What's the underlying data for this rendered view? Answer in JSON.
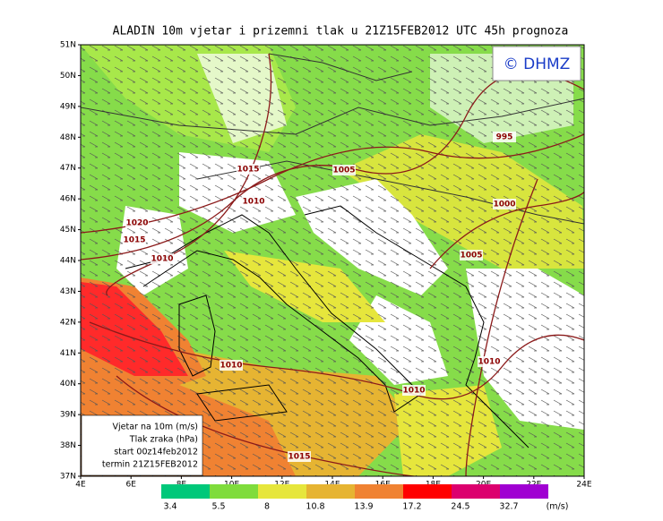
{
  "header": {
    "title": "ALADIN 10m vjetar i prizemni tlak u 21Z15FEB2012 UTC 45h prognoza"
  },
  "logo": "© DHMZ",
  "lat_labels": [
    "37N",
    "38N",
    "39N",
    "40N",
    "41N",
    "42N",
    "43N",
    "44N",
    "45N",
    "46N",
    "47N",
    "48N",
    "49N",
    "50N",
    "51N"
  ],
  "lon_labels": [
    "4E",
    "6E",
    "8E",
    "10E",
    "12E",
    "14E",
    "16E",
    "18E",
    "20E",
    "22E",
    "24E"
  ],
  "isobar_labels": [
    "995",
    "1005",
    "1015",
    "1010",
    "1000",
    "1020",
    "1015",
    "1010",
    "1005",
    "1010",
    "1010",
    "1010",
    "1015"
  ],
  "info_box": [
    "Vjetar na 10m (m/s)",
    "Tlak zraka (hPa)",
    "start 00z14feb2012",
    "termin 21Z15FEB2012"
  ],
  "legend": {
    "colors": [
      "#00c87a",
      "#7fdc3c",
      "#e6e63c",
      "#e6b432",
      "#f08232",
      "#ff0000",
      "#dc006e",
      "#a000d2"
    ],
    "labels": [
      "3.4",
      "5.5",
      "8",
      "10.8",
      "13.9",
      "17.2",
      "24.5",
      "32.7"
    ],
    "unit": "(m/s)"
  }
}
